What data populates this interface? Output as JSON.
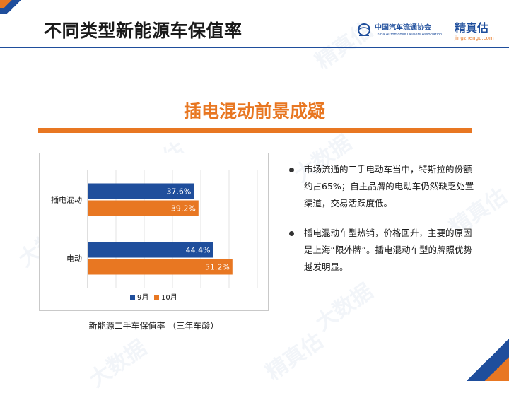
{
  "header": {
    "title": "不同类型新能源车保值率",
    "logos": [
      {
        "cn": "中国汽车流通协会",
        "en": "China Automobile Dealers Association"
      },
      {
        "cn": "精真估",
        "en": "jingzhengu.com"
      }
    ]
  },
  "section": {
    "heading": "插电混动前景成疑"
  },
  "chart_data": {
    "type": "bar",
    "orientation": "horizontal",
    "categories": [
      "插电混动",
      "电动"
    ],
    "series": [
      {
        "name": "9月",
        "values": [
          37.6,
          44.4
        ],
        "labels": [
          "37.6%",
          "44.4%"
        ],
        "color": "#1f4e9c"
      },
      {
        "name": "10月",
        "values": [
          39.2,
          51.2
        ],
        "labels": [
          "39.2%",
          "51.2%"
        ],
        "color": "#e87722"
      }
    ],
    "xlim": [
      0,
      60
    ],
    "gridlines": true,
    "legend_position": "bottom",
    "caption": "新能源二手车保值率 （三年车龄）"
  },
  "bullets": [
    "市场流通的二手电动车当中，特斯拉的份额约占65%；自主品牌的电动车仍然缺乏处置渠道，交易活跃度低。",
    "插电混动车型热销，价格回升，主要的原因是上海“限外牌”。插电混动车型的牌照优势越发明显。"
  ],
  "watermarks": [
    "精真估",
    "大数据"
  ],
  "colors": {
    "accent_blue": "#1f4e9c",
    "accent_orange": "#e87722"
  }
}
